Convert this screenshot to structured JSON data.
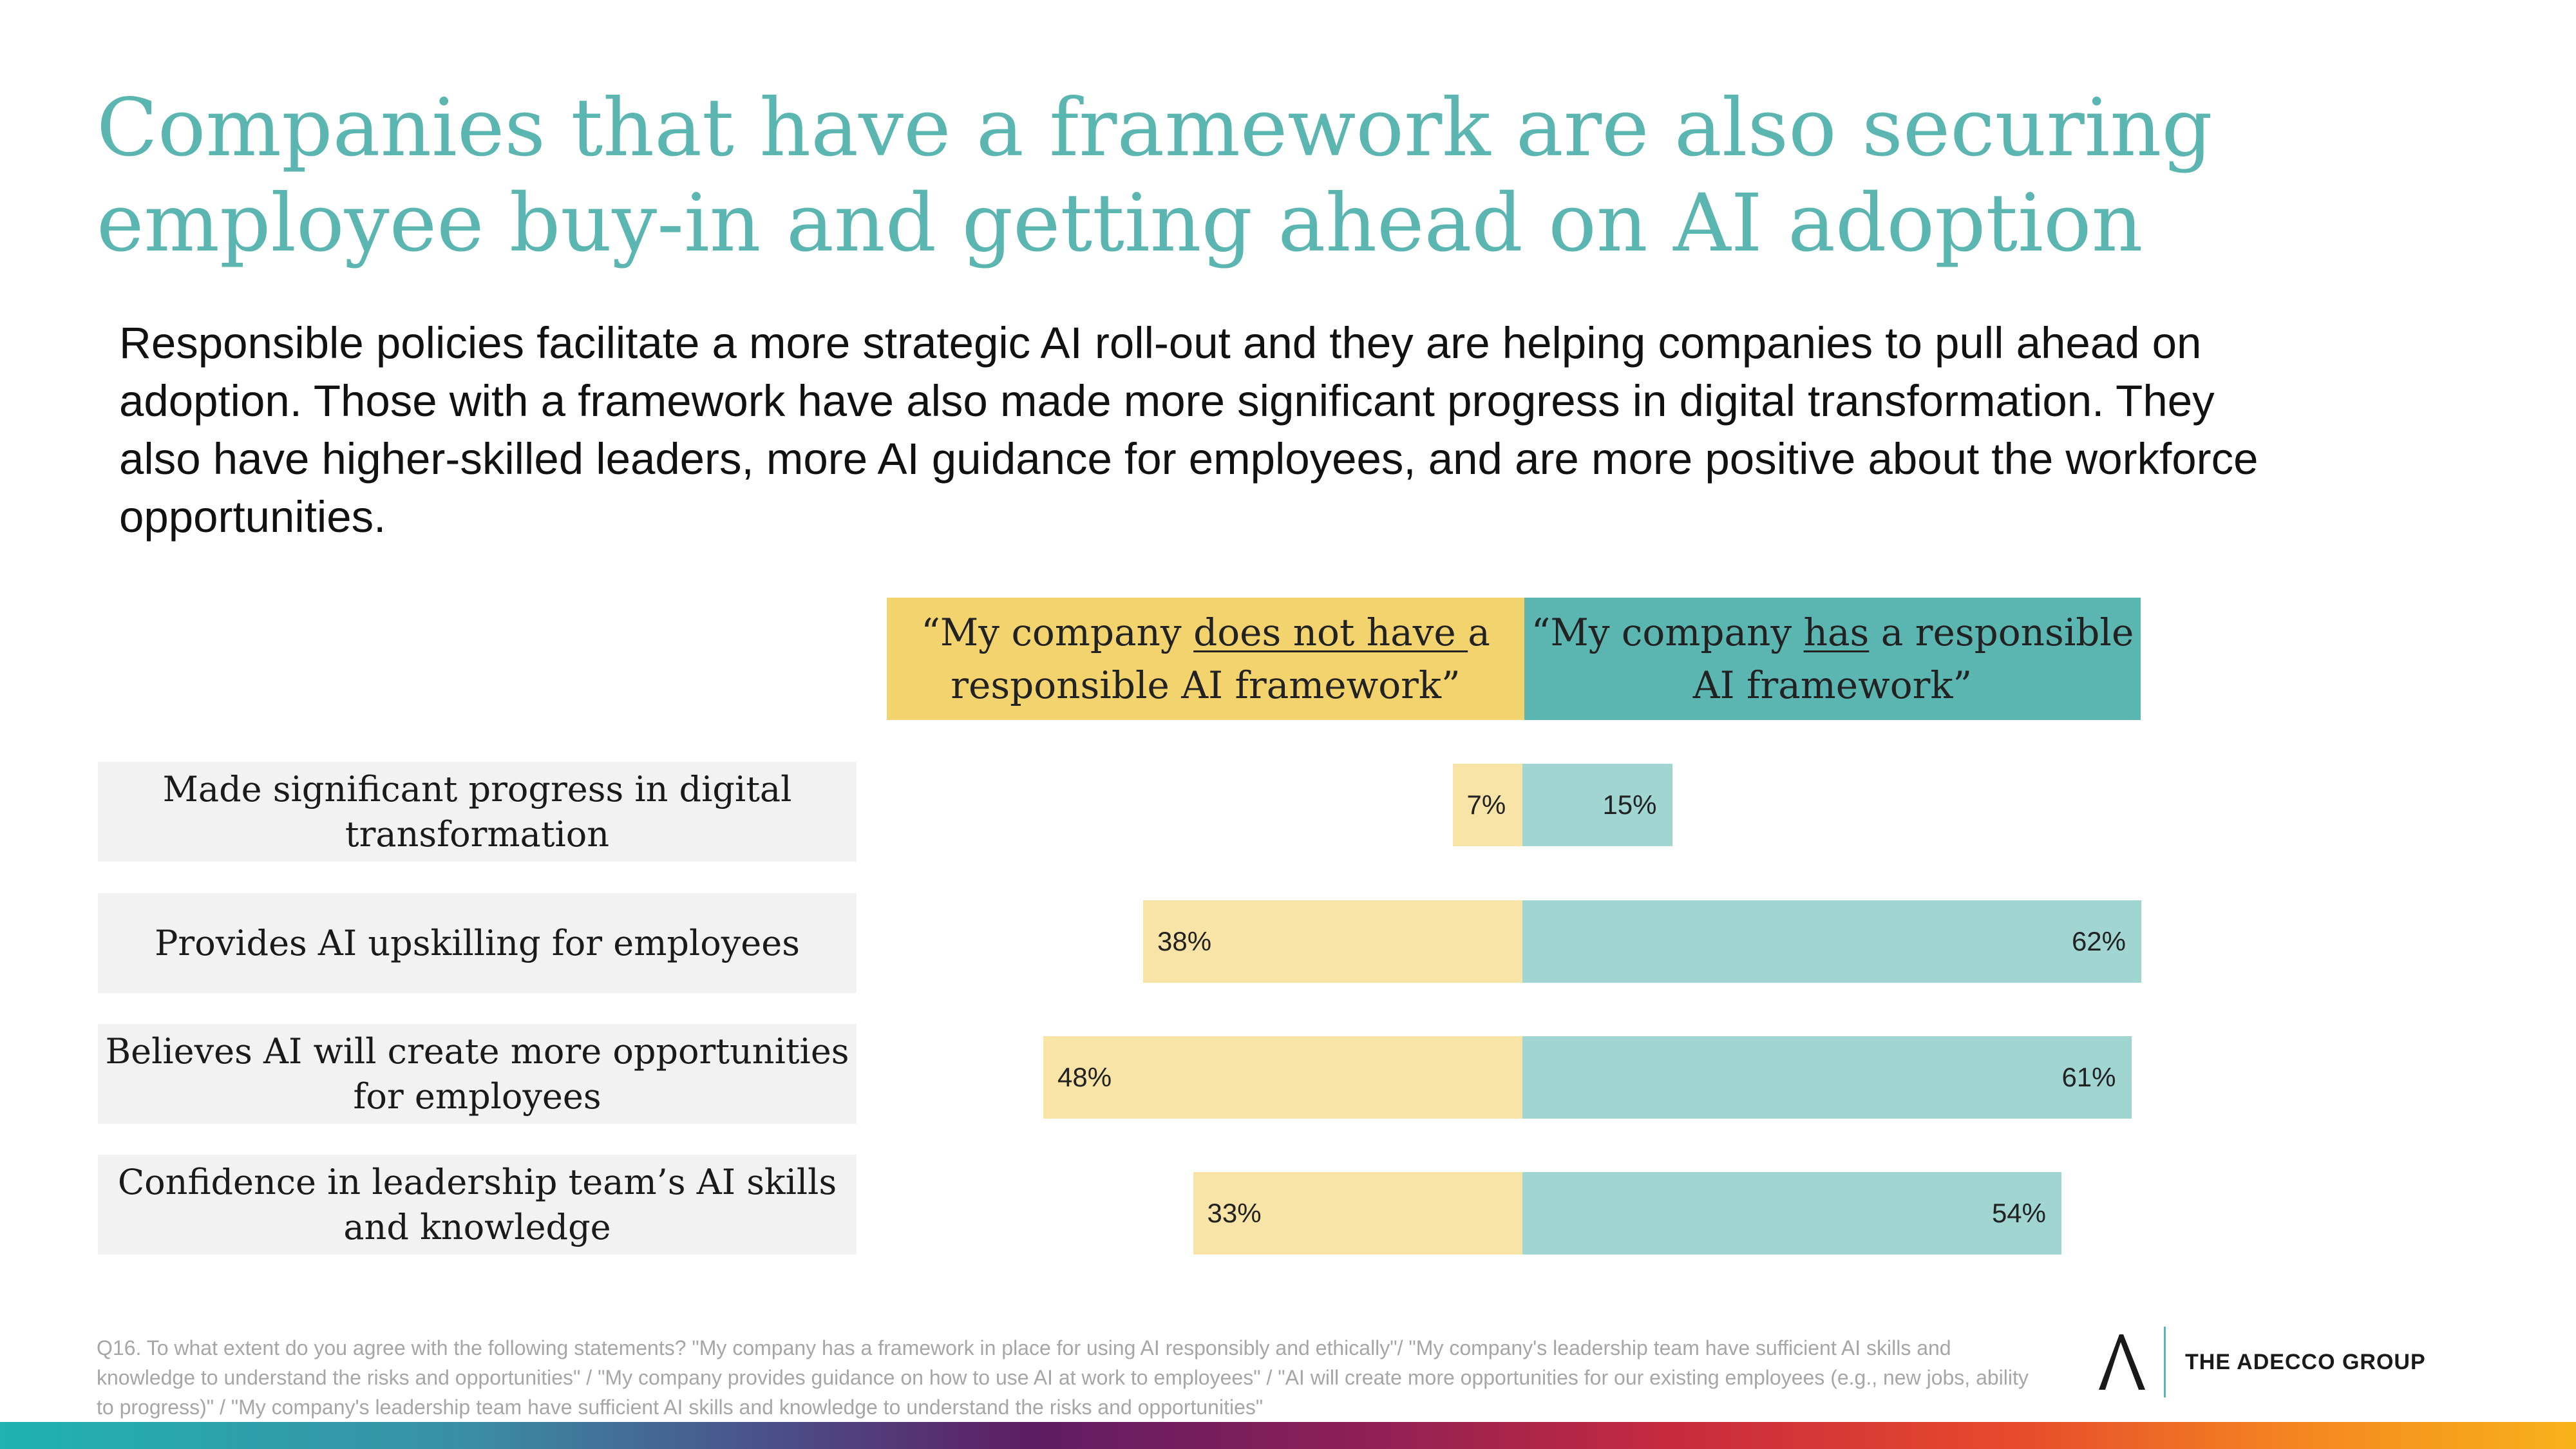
{
  "title": "Companies that have a framework are also securing employee buy-in and getting ahead on AI adoption",
  "subtitle": "Responsible policies facilitate a more strategic AI roll-out and they are helping companies to pull ahead on adoption. Those with a framework have also made more significant progress in digital transformation. They also have higher-skilled leaders, more AI guidance for employees, and are more positive about the workforce opportunities.",
  "headers": {
    "no": {
      "pre": "“My company ",
      "underline": "does not have ",
      "post": "a responsible AI framework”"
    },
    "has": {
      "pre": "“My company ",
      "underline": "has",
      "post": " a responsible AI framework”"
    }
  },
  "chart_data": {
    "type": "bar",
    "orientation": "horizontal-diverging",
    "categories": [
      "Made significant progress in digital transformation",
      "Provides AI upskilling for employees",
      "Believes AI will create more opportunities for employees",
      "Confidence in leadership team’s AI skills and knowledge"
    ],
    "series": [
      {
        "name": "“My company does not have a responsible AI framework”",
        "values": [
          7,
          38,
          48,
          33
        ],
        "color": "#f8e4a6"
      },
      {
        "name": "“My company has a responsible AI framework”",
        "values": [
          15,
          62,
          61,
          54
        ],
        "color": "#a0d5d2"
      }
    ],
    "value_suffix": "%"
  },
  "footnote": "Q16. To what extent do you agree with the following statements? \"My company has a framework in place for using AI responsibly and ethically\"/ \"My company's leadership team have sufficient AI skills and knowledge to understand the risks and opportunities\" / \"My company provides guidance on how to use AI at work to employees\" / \"AI will create more opportunities for our existing employees (e.g., new jobs, ability to progress)\" / \"My company's leadership team have sufficient AI skills and knowledge to understand the risks and opportunities\"",
  "brand": {
    "name": "THE ADECCO GROUP",
    "icon": "adecco-a-logo-icon"
  },
  "colors": {
    "accent": "#5bb5b0",
    "header_no": "#f3d36e",
    "header_has": "#5bb5b0"
  }
}
